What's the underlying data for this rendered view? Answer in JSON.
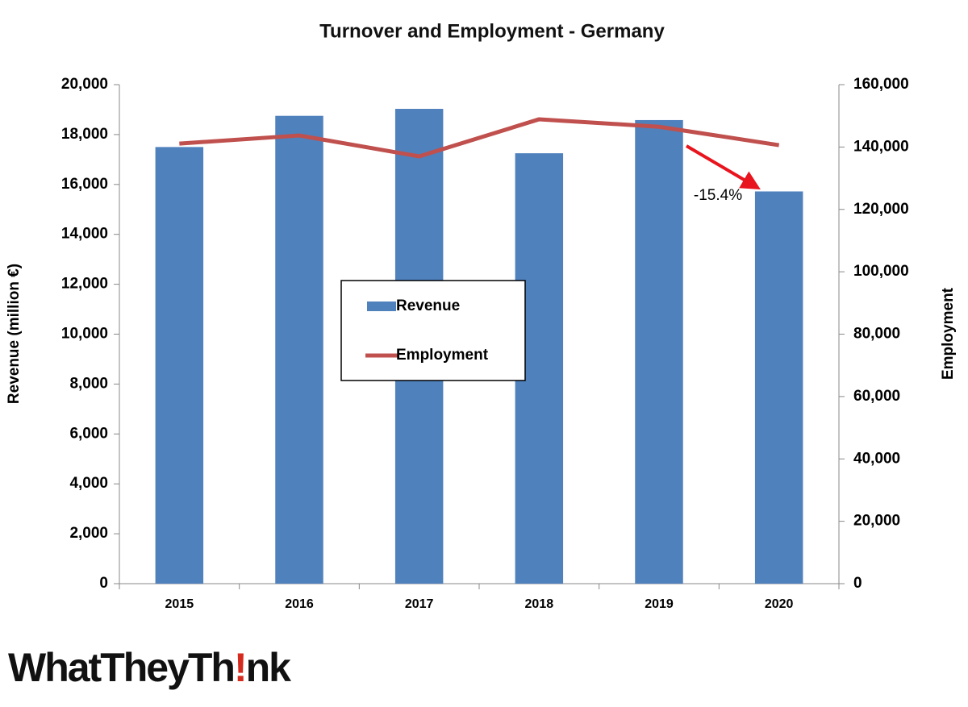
{
  "chart_data": {
    "type": "bar_line",
    "title": "Turnover and Employment - Germany",
    "categories": [
      "2015",
      "2016",
      "2017",
      "2018",
      "2019",
      "2020"
    ],
    "series": [
      {
        "name": "Revenue",
        "type": "bar",
        "color": "#4f81bd",
        "values": [
          17500,
          18750,
          19030,
          17250,
          18580,
          15720
        ]
      },
      {
        "name": "Employment",
        "type": "line",
        "axis": "y2",
        "color": "#c0504d",
        "values": [
          141100,
          143700,
          137000,
          148900,
          146500,
          140600
        ]
      }
    ],
    "ylabel": "Revenue (million €)",
    "y2label": "Employment",
    "ylim": [
      0,
      20000
    ],
    "yticks": [
      0,
      {
        "value": 2000,
        "label": "2,000"
      },
      {
        "value": 4000,
        "label": "4,000"
      },
      {
        "value": 6000,
        "label": "6,000"
      },
      {
        "value": 8000,
        "label": "8,000"
      },
      {
        "value": 10000,
        "label": "10,000"
      },
      {
        "value": 12000,
        "label": "12,000"
      },
      {
        "value": 14000,
        "label": "14,000"
      },
      {
        "value": 16000,
        "label": "16,000"
      },
      {
        "value": 18000,
        "label": "18,000"
      },
      {
        "value": 20000,
        "label": "20,000"
      }
    ],
    "y2lim": [
      0,
      160000
    ],
    "y2ticks": [
      0,
      {
        "value": 20000,
        "label": "20,000"
      },
      {
        "value": 40000,
        "label": "40,000"
      },
      {
        "value": 60000,
        "label": "60,000"
      },
      {
        "value": 80000,
        "label": "80,000"
      },
      {
        "value": 100000,
        "label": "100,000"
      },
      {
        "value": 120000,
        "label": "120,000"
      },
      {
        "value": 140000,
        "label": "140,000"
      },
      {
        "value": 160000,
        "label": "160,000"
      }
    ],
    "grid": false,
    "legend": "center",
    "annotation": "-15.4%"
  },
  "logo": {
    "parts": [
      "WhatTheyTh",
      "!",
      "nk"
    ]
  }
}
